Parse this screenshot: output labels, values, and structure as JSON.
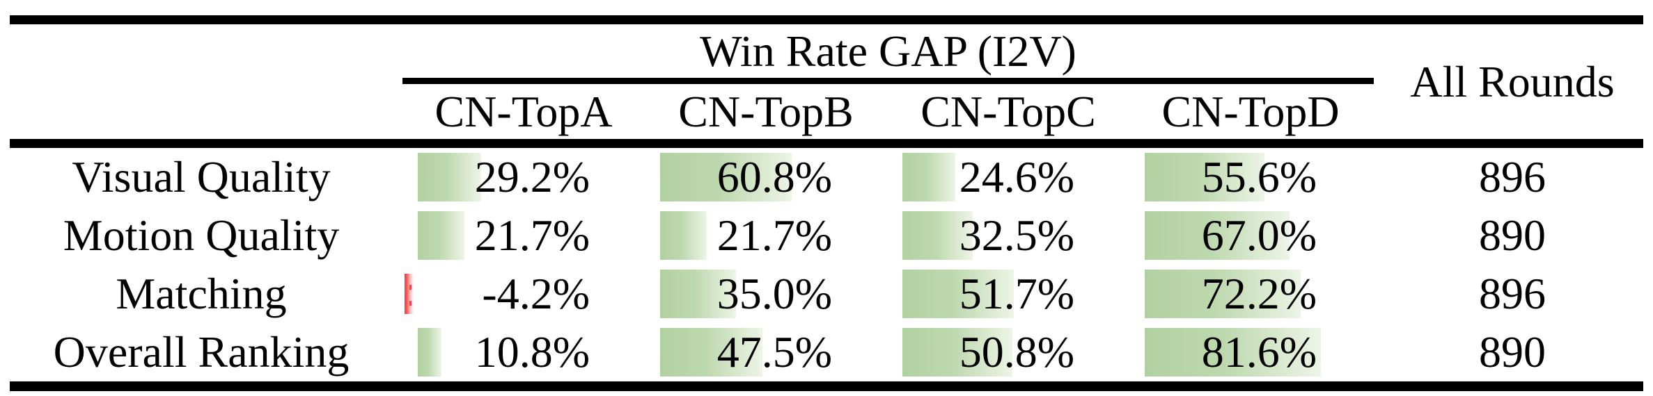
{
  "table": {
    "group_header": "Win Rate GAP (I2V)",
    "all_rounds_header": "All Rounds",
    "columns": [
      "CN-TopA",
      "CN-TopB",
      "CN-TopC",
      "CN-TopD"
    ],
    "rows": [
      {
        "label": "Visual Quality",
        "cells": [
          {
            "display": "29.2%",
            "value": 29.2
          },
          {
            "display": "60.8%",
            "value": 60.8
          },
          {
            "display": "24.6%",
            "value": 24.6
          },
          {
            "display": "55.6%",
            "value": 55.6
          }
        ],
        "rounds": "896"
      },
      {
        "label": "Motion Quality",
        "cells": [
          {
            "display": "21.7%",
            "value": 21.7
          },
          {
            "display": "21.7%",
            "value": 21.7
          },
          {
            "display": "32.5%",
            "value": 32.5
          },
          {
            "display": "67.0%",
            "value": 67.0
          }
        ],
        "rounds": "890"
      },
      {
        "label": "Matching",
        "cells": [
          {
            "display": "-4.2%",
            "value": -4.2
          },
          {
            "display": "35.0%",
            "value": 35.0
          },
          {
            "display": "51.7%",
            "value": 51.7
          },
          {
            "display": "72.2%",
            "value": 72.2
          }
        ],
        "rounds": "896"
      },
      {
        "label": "Overall Ranking",
        "cells": [
          {
            "display": "10.8%",
            "value": 10.8
          },
          {
            "display": "47.5%",
            "value": 47.5
          },
          {
            "display": "50.8%",
            "value": 50.8
          },
          {
            "display": "81.6%",
            "value": 81.6
          }
        ],
        "rounds": "890"
      }
    ]
  },
  "colors": {
    "positive_bar_start": "#b2d1a2",
    "positive_bar_end": "#eef5e8",
    "negative_bar": "#f2383e",
    "text": "#000000",
    "rule": "#000000"
  },
  "chart_data": {
    "type": "table",
    "title": "Win Rate GAP (I2V)",
    "row_header": [
      "Visual Quality",
      "Motion Quality",
      "Matching",
      "Overall Ranking"
    ],
    "columns": [
      "CN-TopA",
      "CN-TopB",
      "CN-TopC",
      "CN-TopD",
      "All Rounds"
    ],
    "series": [
      {
        "name": "Visual Quality",
        "values": [
          29.2,
          60.8,
          24.6,
          55.6
        ],
        "all_rounds": 896
      },
      {
        "name": "Motion Quality",
        "values": [
          21.7,
          21.7,
          32.5,
          67.0
        ],
        "all_rounds": 890
      },
      {
        "name": "Matching",
        "values": [
          -4.2,
          35.0,
          51.7,
          72.2
        ],
        "all_rounds": 896
      },
      {
        "name": "Overall Ranking",
        "values": [
          10.8,
          47.5,
          50.8,
          81.6
        ],
        "all_rounds": 890
      }
    ],
    "notes": "Percent cells contain proportional data bars; green for positive, red for negative"
  }
}
